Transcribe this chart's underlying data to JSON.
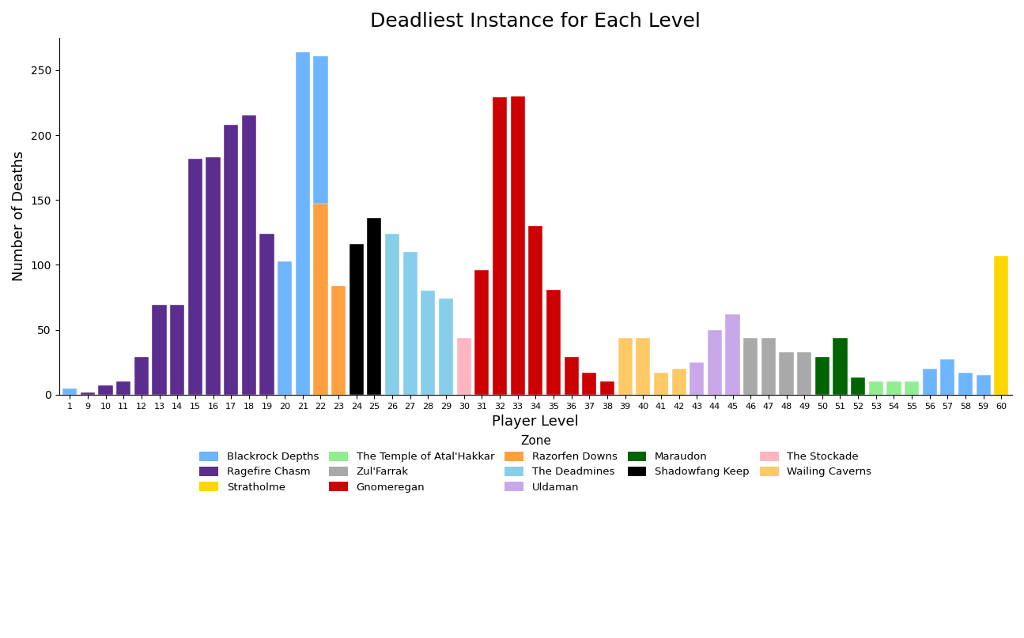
{
  "title": "Deadliest Instance for Each Level",
  "xlabel": "Player Level",
  "ylabel": "Number of Deaths",
  "bars": [
    {
      "level": 1,
      "deaths": 5,
      "zone": "Blackrock Depths",
      "color": "#6EB5FF"
    },
    {
      "level": 9,
      "deaths": 2,
      "zone": "Ragefire Chasm",
      "color": "#5B2D8E"
    },
    {
      "level": 10,
      "deaths": 7,
      "zone": "Ragefire Chasm",
      "color": "#5B2D8E"
    },
    {
      "level": 11,
      "deaths": 10,
      "zone": "Ragefire Chasm",
      "color": "#5B2D8E"
    },
    {
      "level": 12,
      "deaths": 29,
      "zone": "Ragefire Chasm",
      "color": "#5B2D8E"
    },
    {
      "level": 13,
      "deaths": 69,
      "zone": "Ragefire Chasm",
      "color": "#5B2D8E"
    },
    {
      "level": 14,
      "deaths": 69,
      "zone": "Ragefire Chasm",
      "color": "#5B2D8E"
    },
    {
      "level": 15,
      "deaths": 182,
      "zone": "Ragefire Chasm",
      "color": "#5B2D8E"
    },
    {
      "level": 16,
      "deaths": 183,
      "zone": "Ragefire Chasm",
      "color": "#5B2D8E"
    },
    {
      "level": 17,
      "deaths": 208,
      "zone": "Ragefire Chasm",
      "color": "#5B2D8E"
    },
    {
      "level": 18,
      "deaths": 215,
      "zone": "Ragefire Chasm",
      "color": "#5B2D8E"
    },
    {
      "level": 19,
      "deaths": 124,
      "zone": "Ragefire Chasm",
      "color": "#5B2D8E"
    },
    {
      "level": 20,
      "deaths": 103,
      "zone": "Blackrock Depths",
      "color": "#6EB5FF"
    },
    {
      "level": 21,
      "deaths": 264,
      "zone": "Blackrock Depths",
      "color": "#6EB5FF"
    },
    {
      "level": 22,
      "deaths": 261,
      "zone": "Blackrock Depths",
      "color": "#6EB5FF"
    },
    {
      "level": 22,
      "deaths": 147,
      "zone": "Razorfen Downs",
      "color": "#FFA040"
    },
    {
      "level": 23,
      "deaths": 84,
      "zone": "Razorfen Downs",
      "color": "#FFA040"
    },
    {
      "level": 24,
      "deaths": 116,
      "zone": "Shadowfang Keep",
      "color": "#000000"
    },
    {
      "level": 25,
      "deaths": 136,
      "zone": "Shadowfang Keep",
      "color": "#000000"
    },
    {
      "level": 26,
      "deaths": 124,
      "zone": "The Deadmines",
      "color": "#87CEEB"
    },
    {
      "level": 27,
      "deaths": 110,
      "zone": "The Deadmines",
      "color": "#87CEEB"
    },
    {
      "level": 28,
      "deaths": 80,
      "zone": "The Deadmines",
      "color": "#87CEEB"
    },
    {
      "level": 29,
      "deaths": 74,
      "zone": "The Deadmines",
      "color": "#87CEEB"
    },
    {
      "level": 30,
      "deaths": 44,
      "zone": "The Stockade",
      "color": "#FFB6C1"
    },
    {
      "level": 31,
      "deaths": 96,
      "zone": "Gnomeregan",
      "color": "#CC0000"
    },
    {
      "level": 32,
      "deaths": 229,
      "zone": "Gnomeregan",
      "color": "#CC0000"
    },
    {
      "level": 33,
      "deaths": 230,
      "zone": "Gnomeregan",
      "color": "#CC0000"
    },
    {
      "level": 34,
      "deaths": 130,
      "zone": "Gnomeregan",
      "color": "#CC0000"
    },
    {
      "level": 35,
      "deaths": 81,
      "zone": "Gnomeregan",
      "color": "#CC0000"
    },
    {
      "level": 36,
      "deaths": 29,
      "zone": "Gnomeregan",
      "color": "#CC0000"
    },
    {
      "level": 37,
      "deaths": 17,
      "zone": "Gnomeregan",
      "color": "#CC0000"
    },
    {
      "level": 38,
      "deaths": 10,
      "zone": "Gnomeregan",
      "color": "#CC0000"
    },
    {
      "level": 39,
      "deaths": 44,
      "zone": "Wailing Caverns",
      "color": "#FFC966"
    },
    {
      "level": 40,
      "deaths": 44,
      "zone": "Wailing Caverns",
      "color": "#FFC966"
    },
    {
      "level": 41,
      "deaths": 17,
      "zone": "Wailing Caverns",
      "color": "#FFC966"
    },
    {
      "level": 42,
      "deaths": 20,
      "zone": "Wailing Caverns",
      "color": "#FFC966"
    },
    {
      "level": 43,
      "deaths": 25,
      "zone": "Uldaman",
      "color": "#C8A8E8"
    },
    {
      "level": 44,
      "deaths": 50,
      "zone": "Uldaman",
      "color": "#C8A8E8"
    },
    {
      "level": 45,
      "deaths": 62,
      "zone": "Uldaman",
      "color": "#C8A8E8"
    },
    {
      "level": 46,
      "deaths": 44,
      "zone": "Zul'Farrak",
      "color": "#A9A9A9"
    },
    {
      "level": 47,
      "deaths": 44,
      "zone": "Zul'Farrak",
      "color": "#A9A9A9"
    },
    {
      "level": 48,
      "deaths": 33,
      "zone": "Zul'Farrak",
      "color": "#A9A9A9"
    },
    {
      "level": 49,
      "deaths": 33,
      "zone": "Zul'Farrak",
      "color": "#A9A9A9"
    },
    {
      "level": 50,
      "deaths": 29,
      "zone": "Maraudon",
      "color": "#006400"
    },
    {
      "level": 51,
      "deaths": 44,
      "zone": "Maraudon",
      "color": "#006400"
    },
    {
      "level": 52,
      "deaths": 13,
      "zone": "Maraudon",
      "color": "#006400"
    },
    {
      "level": 53,
      "deaths": 10,
      "zone": "The Temple of Atal'Hakkar",
      "color": "#90EE90"
    },
    {
      "level": 54,
      "deaths": 10,
      "zone": "The Temple of Atal'Hakkar",
      "color": "#90EE90"
    },
    {
      "level": 55,
      "deaths": 10,
      "zone": "The Temple of Atal'Hakkar",
      "color": "#90EE90"
    },
    {
      "level": 56,
      "deaths": 20,
      "zone": "Blackrock Depths",
      "color": "#6EB5FF"
    },
    {
      "level": 57,
      "deaths": 27,
      "zone": "Blackrock Depths",
      "color": "#6EB5FF"
    },
    {
      "level": 58,
      "deaths": 17,
      "zone": "Blackrock Depths",
      "color": "#6EB5FF"
    },
    {
      "level": 59,
      "deaths": 15,
      "zone": "Blackrock Depths",
      "color": "#6EB5FF"
    },
    {
      "level": 60,
      "deaths": 107,
      "zone": "Stratholme",
      "color": "#FFD700"
    }
  ],
  "legend_row1": [
    {
      "label": "Blackrock Depths",
      "color": "#6EB5FF"
    },
    {
      "label": "Ragefire Chasm",
      "color": "#5B2D8E"
    },
    {
      "label": "Stratholme",
      "color": "#FFD700"
    },
    {
      "label": "The Temple of Atal'Hakkar",
      "color": "#90EE90"
    },
    {
      "label": "Zul'Farrak",
      "color": "#A9A9A9"
    }
  ],
  "legend_row2": [
    {
      "label": "Gnomeregan",
      "color": "#CC0000"
    },
    {
      "label": "Razorfen Downs",
      "color": "#FFA040"
    },
    {
      "label": "The Deadmines",
      "color": "#87CEEB"
    },
    {
      "label": "Uldaman",
      "color": "#C8A8E8"
    }
  ],
  "legend_row3": [
    {
      "label": "Maraudon",
      "color": "#006400"
    },
    {
      "label": "Shadowfang Keep",
      "color": "#000000"
    },
    {
      "label": "The Stockade",
      "color": "#FFB6C1"
    },
    {
      "label": "Wailing Caverns",
      "color": "#FFC966"
    }
  ],
  "xtick_labels": [
    "1",
    "9",
    "10",
    "11",
    "12",
    "13",
    "14",
    "15",
    "16",
    "17",
    "18",
    "19",
    "20",
    "21",
    "22",
    "23",
    "24",
    "25",
    "26",
    "27",
    "28",
    "29",
    "30",
    "31",
    "32",
    "33",
    "34",
    "35",
    "36",
    "37",
    "38",
    "39",
    "40",
    "41",
    "42",
    "43",
    "44",
    "45",
    "46",
    "47",
    "48",
    "49",
    "50",
    "51",
    "52",
    "53",
    "54",
    "55",
    "56",
    "57",
    "58",
    "59",
    "60"
  ]
}
